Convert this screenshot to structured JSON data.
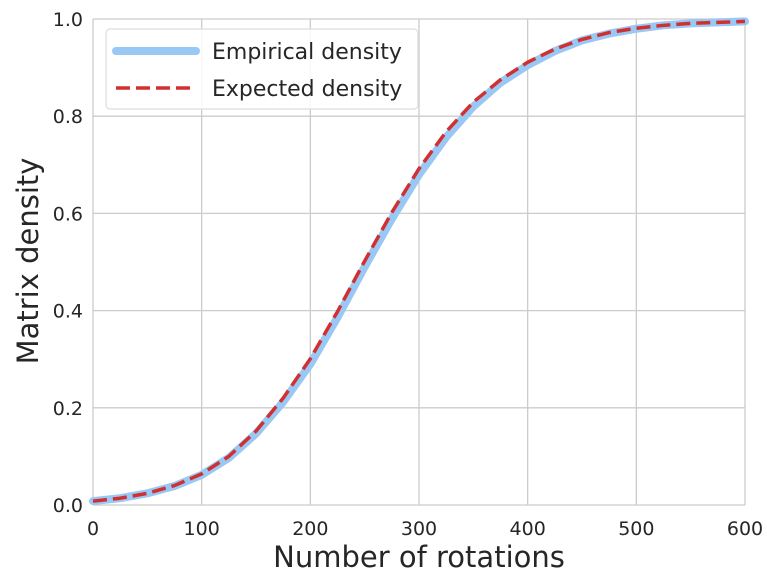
{
  "chart_data": {
    "type": "line",
    "xlabel": "Number of rotations",
    "ylabel": "Matrix density",
    "xlim": [
      0,
      600
    ],
    "ylim": [
      0,
      1
    ],
    "xticks": [
      "0",
      "100",
      "200",
      "300",
      "400",
      "500",
      "600"
    ],
    "yticks": [
      "0.0",
      "0.2",
      "0.4",
      "0.6",
      "0.8",
      "1.0"
    ],
    "xtick_values": [
      0,
      100,
      200,
      300,
      400,
      500,
      600
    ],
    "ytick_values": [
      0,
      0.2,
      0.4,
      0.6,
      0.8,
      1.0
    ],
    "grid": true,
    "legend": {
      "position": "top-left"
    },
    "series": [
      {
        "name": "Empirical density",
        "style": "solid",
        "color": "#99c8f5",
        "x": [
          0,
          25,
          50,
          75,
          100,
          125,
          150,
          175,
          200,
          225,
          250,
          275,
          300,
          325,
          350,
          375,
          400,
          425,
          450,
          475,
          500,
          525,
          550,
          575,
          600
        ],
        "y": [
          0.008,
          0.014,
          0.024,
          0.039,
          0.062,
          0.097,
          0.147,
          0.212,
          0.29,
          0.386,
          0.49,
          0.589,
          0.68,
          0.757,
          0.82,
          0.869,
          0.905,
          0.934,
          0.956,
          0.97,
          0.98,
          0.987,
          0.991,
          0.993,
          0.995
        ]
      },
      {
        "name": "Expected density",
        "style": "dashed",
        "color": "#d03030",
        "x": [
          0,
          25,
          50,
          75,
          100,
          125,
          150,
          175,
          200,
          225,
          250,
          275,
          300,
          325,
          350,
          375,
          400,
          425,
          450,
          475,
          500,
          525,
          550,
          575,
          600
        ],
        "y": [
          0.008,
          0.014,
          0.024,
          0.04,
          0.064,
          0.1,
          0.152,
          0.22,
          0.301,
          0.398,
          0.502,
          0.602,
          0.692,
          0.768,
          0.829,
          0.875,
          0.911,
          0.938,
          0.958,
          0.972,
          0.981,
          0.987,
          0.991,
          0.993,
          0.995
        ]
      }
    ]
  }
}
